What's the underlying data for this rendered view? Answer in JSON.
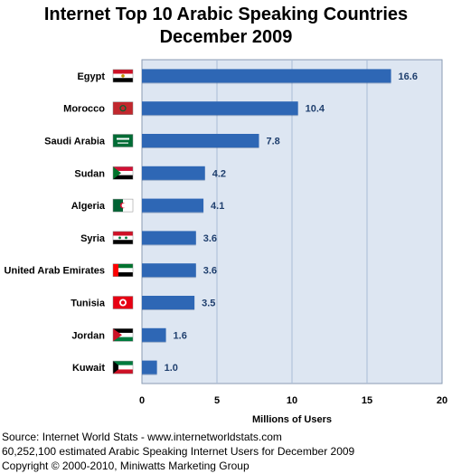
{
  "chart_data": {
    "type": "bar",
    "orientation": "horizontal",
    "title": "Internet Top 10 Arabic Speaking Countries",
    "subtitle": "December 2009",
    "xlabel": "Millions of Users",
    "ylabel": "",
    "xlim": [
      0,
      20
    ],
    "xticks": [
      "0",
      "5",
      "10",
      "15",
      "20"
    ],
    "grid": true,
    "legend": "none",
    "bar_color": "#2e67b5",
    "plot_background": "#dde6f2",
    "categories": [
      "Egypt",
      "Morocco",
      "Saudi Arabia",
      "Sudan",
      "Algeria",
      "Syria",
      "United Arab Emirates",
      "Tunisia",
      "Jordan",
      "Kuwait"
    ],
    "values": [
      16.6,
      10.4,
      7.8,
      4.2,
      4.1,
      3.6,
      3.6,
      3.5,
      1.6,
      1.0
    ],
    "value_labels": [
      "16.6",
      "10.4",
      "7.8",
      "4.2",
      "4.1",
      "3.6",
      "3.6",
      "3.5",
      "1.6",
      "1.0"
    ],
    "flags": [
      "egypt-flag",
      "morocco-flag",
      "saudi-arabia-flag",
      "sudan-flag",
      "algeria-flag",
      "syria-flag",
      "uae-flag",
      "tunisia-flag",
      "jordan-flag",
      "kuwait-flag"
    ]
  },
  "footer": {
    "source": "Source: Internet World Stats -  www.internetworldstats.com",
    "estimate": "60,252,100 estimated Arabic Speaking Internet Users for December 2009",
    "copyright": "Copyright © 2000-2010, Miniwatts Marketing Group"
  }
}
